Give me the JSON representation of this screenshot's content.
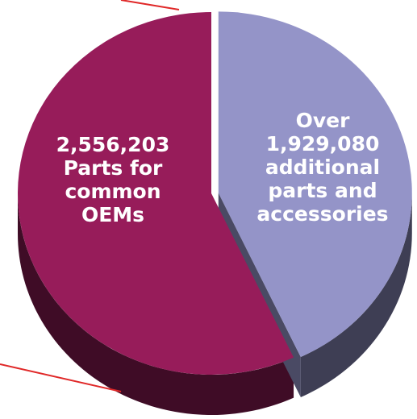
{
  "chart_data": {
    "type": "pie",
    "categories": [
      "Parts for common OEMs",
      "additional parts and accessories"
    ],
    "values": [
      2556203,
      1929080
    ],
    "value_labels": [
      "2,556,203",
      "Over 1,929,080"
    ],
    "colors": [
      "#971c5a",
      "#9494c8"
    ]
  }
}
